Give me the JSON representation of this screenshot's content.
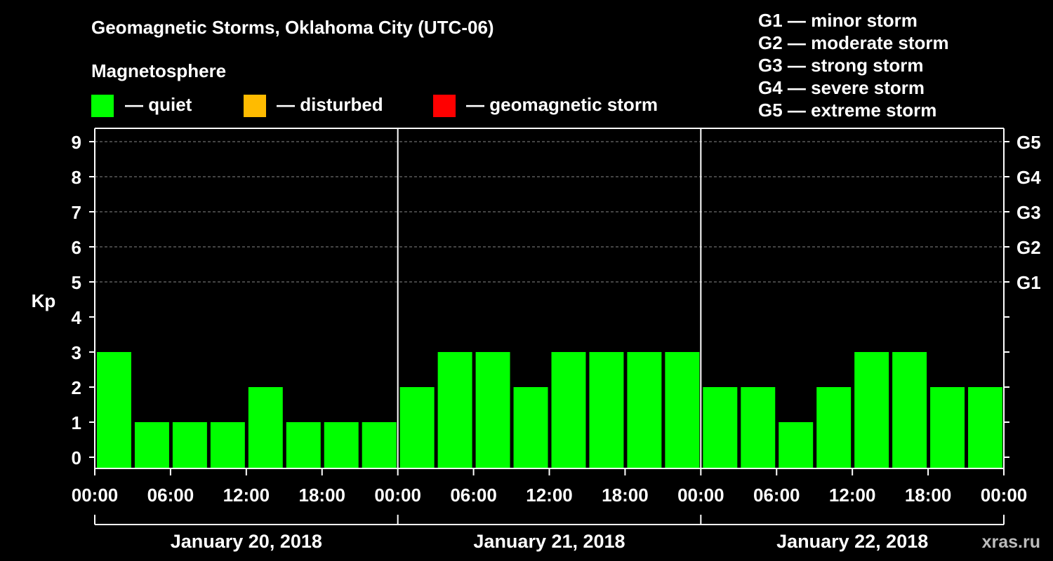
{
  "header": {
    "title": "Geomagnetic Storms, Oklahoma City (UTC-06)",
    "magnetosphere_label": "Magnetosphere"
  },
  "legend": [
    {
      "label": "— quiet",
      "color": "#00ff00"
    },
    {
      "label": "— disturbed",
      "color": "#ffbb00"
    },
    {
      "label": "— geomagnetic storm",
      "color": "#ff0000"
    }
  ],
  "storm_scale": [
    "G1 — minor storm",
    "G2 — moderate storm",
    "G3 — strong storm",
    "G4 — severe storm",
    "G5 — extreme storm"
  ],
  "watermark": "xras.ru",
  "chart_data": {
    "type": "bar",
    "ylabel": "Kp",
    "ylim": [
      0,
      9
    ],
    "y_ticks": [
      "0",
      "1",
      "2",
      "3",
      "4",
      "5",
      "6",
      "7",
      "8",
      "9"
    ],
    "right_axis_ticks": [
      {
        "kp": 5,
        "label": "G1"
      },
      {
        "kp": 6,
        "label": "G2"
      },
      {
        "kp": 7,
        "label": "G3"
      },
      {
        "kp": 8,
        "label": "G4"
      },
      {
        "kp": 9,
        "label": "G5"
      }
    ],
    "x_tick_labels": [
      "00:00",
      "06:00",
      "12:00",
      "18:00",
      "00:00",
      "06:00",
      "12:00",
      "18:00",
      "00:00",
      "06:00",
      "12:00",
      "18:00",
      "00:00"
    ],
    "days": [
      "January 20, 2018",
      "January 21, 2018",
      "January 22, 2018"
    ],
    "interval_hours": 3,
    "values": [
      3,
      1,
      1,
      1,
      2,
      1,
      1,
      1,
      2,
      3,
      3,
      2,
      3,
      3,
      3,
      3,
      2,
      2,
      1,
      2,
      3,
      3,
      2,
      2
    ],
    "bar_color": "#00ff00",
    "grid": "dashed lines at Kp 5-9"
  }
}
